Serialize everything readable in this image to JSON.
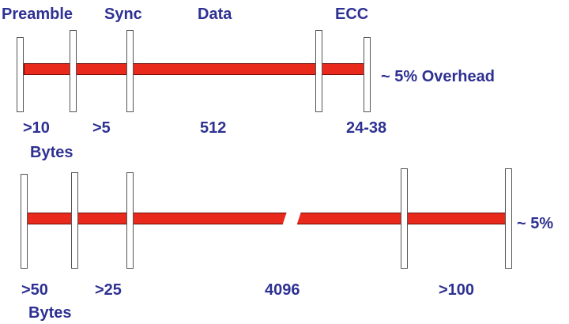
{
  "colors": {
    "text": "#2e3192",
    "bar": "#e8291c",
    "separator_border": "#555555"
  },
  "top_diagram": {
    "field_labels": {
      "preamble": "Preamble",
      "sync": "Sync",
      "data": "Data",
      "ecc": "ECC"
    },
    "overhead_label": "~ 5% Overhead",
    "size_labels": {
      "preamble": ">10",
      "sync": ">5",
      "data": "512",
      "ecc": "24-38"
    },
    "unit_label": "Bytes"
  },
  "bottom_diagram": {
    "overhead_label": "~ 5%",
    "size_labels": {
      "preamble": ">50",
      "sync": ">25",
      "data": "4096",
      "ecc": ">100"
    },
    "unit_label": "Bytes"
  }
}
